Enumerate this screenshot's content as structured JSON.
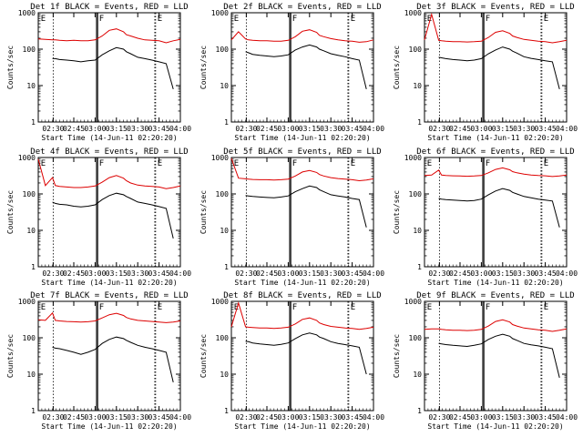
{
  "figure": {
    "colors": {
      "events": "#000000",
      "lld": "#dd0000",
      "axes": "#000000",
      "background": "#ffffff"
    }
  },
  "shared": {
    "ylabel": "Counts/sec",
    "xlabel": "Start Time (14-Jun-11 02:20:20)",
    "x_tick_labels": [
      "02:30",
      "02:45",
      "03:00",
      "03:15",
      "03:30",
      "03:45",
      "04:00"
    ],
    "y_tick_labels": [
      "1",
      "10",
      "100",
      "1000"
    ],
    "flag_F": "F",
    "flag_E": "E"
  },
  "chart_data": [
    {
      "type": "line",
      "title": "Det 1f BLACK = Events, RED = LLD",
      "xlabel": "Start Time (14-Jun-11 02:20:20)",
      "ylabel": "Counts/sec",
      "x_range_min": [
        0,
        100
      ],
      "y_range": [
        1,
        1000
      ],
      "y_scale": "log",
      "grid": false,
      "x_min": [
        0,
        5,
        10,
        12,
        15,
        20,
        25,
        30,
        35,
        40,
        45,
        50,
        55,
        60,
        62,
        65,
        70,
        75,
        80,
        85,
        90,
        95,
        100
      ],
      "series": [
        {
          "name": "LLD",
          "values": [
            190,
            185,
            180,
            180,
            175,
            170,
            175,
            170,
            170,
            180,
            230,
            330,
            360,
            300,
            250,
            230,
            200,
            180,
            175,
            170,
            150,
            170,
            185
          ]
        },
        {
          "name": "Events",
          "values": [
            null,
            null,
            55,
            55,
            52,
            50,
            48,
            45,
            48,
            50,
            70,
            90,
            110,
            100,
            85,
            75,
            60,
            55,
            50,
            45,
            40,
            8,
            null
          ]
        }
      ],
      "vertical_markers_min": [
        10.5,
        41,
        41.8,
        82,
        82.6
      ],
      "flags": [
        {
          "label": "E",
          "x_min": 0.5
        },
        {
          "label": "F",
          "x_min": 41.5
        },
        {
          "label": "E",
          "x_min": 82.5
        }
      ]
    },
    {
      "type": "line",
      "title": "Det 2f BLACK = Events, RED = LLD",
      "xlabel": "Start Time (14-Jun-11 02:20:20)",
      "ylabel": "Counts/sec",
      "x_range_min": [
        0,
        100
      ],
      "y_range": [
        1,
        1000
      ],
      "y_scale": "log",
      "grid": false,
      "x_min": [
        0,
        5,
        10,
        12,
        15,
        20,
        25,
        30,
        35,
        40,
        45,
        50,
        55,
        60,
        62,
        65,
        70,
        75,
        80,
        85,
        90,
        95,
        100
      ],
      "series": [
        {
          "name": "LLD",
          "values": [
            180,
            300,
            190,
            180,
            175,
            170,
            170,
            165,
            165,
            175,
            220,
            310,
            340,
            290,
            240,
            220,
            195,
            180,
            170,
            165,
            155,
            160,
            180
          ]
        },
        {
          "name": "Events",
          "values": [
            null,
            null,
            85,
            80,
            72,
            68,
            65,
            62,
            65,
            70,
            95,
            115,
            130,
            115,
            100,
            90,
            75,
            68,
            62,
            55,
            50,
            8,
            null
          ]
        }
      ],
      "vertical_markers_min": [
        10.5,
        41,
        41.8,
        82,
        82.6
      ],
      "flags": [
        {
          "label": "E",
          "x_min": 0.5
        },
        {
          "label": "F",
          "x_min": 41.5
        },
        {
          "label": "E",
          "x_min": 82.5
        }
      ]
    },
    {
      "type": "line",
      "title": "Det 3f BLACK = Events, RED = LLD",
      "xlabel": "Start Time (14-Jun-11 02:20:20)",
      "ylabel": "Counts/sec",
      "x_range_min": [
        0,
        100
      ],
      "y_range": [
        1,
        1000
      ],
      "y_scale": "log",
      "grid": false,
      "x_min": [
        0,
        5,
        10,
        12,
        15,
        20,
        25,
        30,
        35,
        40,
        45,
        50,
        55,
        60,
        62,
        65,
        70,
        75,
        80,
        85,
        90,
        95,
        100
      ],
      "series": [
        {
          "name": "LLD",
          "values": [
            180,
            900,
            175,
            170,
            165,
            160,
            160,
            158,
            160,
            165,
            210,
            290,
            320,
            270,
            230,
            210,
            185,
            175,
            165,
            160,
            150,
            160,
            175
          ]
        },
        {
          "name": "Events",
          "values": [
            null,
            null,
            60,
            58,
            55,
            52,
            50,
            48,
            50,
            55,
            75,
            95,
            115,
            100,
            88,
            78,
            62,
            56,
            52,
            48,
            45,
            8,
            null
          ]
        }
      ],
      "vertical_markers_min": [
        10.5,
        41,
        41.8,
        82,
        82.6
      ],
      "flags": [
        {
          "label": "E",
          "x_min": 0.5
        },
        {
          "label": "F",
          "x_min": 41.5
        },
        {
          "label": "E",
          "x_min": 82.5
        }
      ]
    },
    {
      "type": "line",
      "title": "Det 4f BLACK = Events, RED = LLD",
      "xlabel": "Start Time (14-Jun-11 02:20:20)",
      "ylabel": "Counts/sec",
      "x_range_min": [
        0,
        100
      ],
      "y_range": [
        1,
        1000
      ],
      "y_scale": "log",
      "grid": false,
      "x_min": [
        0,
        5,
        10,
        12,
        15,
        20,
        25,
        30,
        35,
        40,
        45,
        50,
        55,
        60,
        62,
        65,
        70,
        75,
        80,
        85,
        90,
        95,
        100
      ],
      "series": [
        {
          "name": "LLD",
          "values": [
            900,
            170,
            280,
            170,
            160,
            155,
            150,
            150,
            155,
            165,
            210,
            280,
            320,
            270,
            230,
            200,
            175,
            165,
            160,
            155,
            140,
            150,
            165
          ]
        },
        {
          "name": "Events",
          "values": [
            null,
            null,
            60,
            55,
            52,
            50,
            46,
            44,
            46,
            50,
            70,
            90,
            105,
            95,
            85,
            75,
            60,
            55,
            50,
            45,
            40,
            6,
            null
          ]
        }
      ],
      "vertical_markers_min": [
        10.5,
        41,
        41.8,
        82,
        82.6
      ],
      "flags": [
        {
          "label": "E",
          "x_min": 0.5
        },
        {
          "label": "F",
          "x_min": 41.5
        },
        {
          "label": "E",
          "x_min": 82.5
        }
      ]
    },
    {
      "type": "line",
      "title": "Det 5f BLACK = Events, RED = LLD",
      "xlabel": "Start Time (14-Jun-11 02:20:20)",
      "ylabel": "Counts/sec",
      "x_range_min": [
        0,
        100
      ],
      "y_range": [
        1,
        1000
      ],
      "y_scale": "log",
      "grid": false,
      "x_min": [
        0,
        5,
        10,
        12,
        15,
        20,
        25,
        30,
        35,
        40,
        45,
        50,
        55,
        60,
        62,
        65,
        70,
        75,
        80,
        85,
        90,
        95,
        100
      ],
      "series": [
        {
          "name": "LLD",
          "values": [
            950,
            270,
            260,
            255,
            250,
            245,
            245,
            240,
            245,
            255,
            310,
            400,
            440,
            390,
            340,
            310,
            280,
            265,
            255,
            245,
            230,
            240,
            260
          ]
        },
        {
          "name": "Events",
          "values": [
            null,
            null,
            90,
            88,
            85,
            82,
            80,
            78,
            82,
            88,
            115,
            140,
            165,
            150,
            130,
            115,
            95,
            88,
            82,
            75,
            70,
            12,
            null
          ]
        }
      ],
      "vertical_markers_min": [
        10.5,
        41,
        41.8,
        82,
        82.6
      ],
      "flags": [
        {
          "label": "E",
          "x_min": 0.5
        },
        {
          "label": "F",
          "x_min": 41.5
        },
        {
          "label": "E",
          "x_min": 82.5
        }
      ]
    },
    {
      "type": "line",
      "title": "Det 6f BLACK = Events, RED = LLD",
      "xlabel": "Start Time (14-Jun-11 02:20:20)",
      "ylabel": "Counts/sec",
      "x_range_min": [
        0,
        100
      ],
      "y_range": [
        1,
        1000
      ],
      "y_scale": "log",
      "grid": false,
      "x_min": [
        0,
        5,
        10,
        12,
        15,
        20,
        25,
        30,
        35,
        40,
        45,
        50,
        55,
        60,
        62,
        65,
        70,
        75,
        80,
        85,
        90,
        95,
        100
      ],
      "series": [
        {
          "name": "LLD",
          "values": [
            320,
            330,
            450,
            330,
            320,
            315,
            310,
            305,
            310,
            320,
            380,
            470,
            520,
            460,
            410,
            380,
            350,
            330,
            320,
            315,
            300,
            310,
            330
          ]
        },
        {
          "name": "Events",
          "values": [
            null,
            null,
            75,
            72,
            70,
            68,
            66,
            64,
            66,
            72,
            95,
            120,
            140,
            125,
            110,
            100,
            85,
            78,
            72,
            68,
            64,
            12,
            null
          ]
        }
      ],
      "vertical_markers_min": [
        10.5,
        41,
        41.8,
        82,
        82.6
      ],
      "flags": [
        {
          "label": "E",
          "x_min": 0.5
        },
        {
          "label": "F",
          "x_min": 41.5
        },
        {
          "label": "E",
          "x_min": 82.5
        }
      ]
    },
    {
      "type": "line",
      "title": "Det 7f BLACK = Events, RED = LLD",
      "xlabel": "Start Time (14-Jun-11 02:20:20)",
      "ylabel": "Counts/sec",
      "x_range_min": [
        0,
        100
      ],
      "y_range": [
        1,
        1000
      ],
      "y_scale": "log",
      "grid": false,
      "x_min": [
        0,
        5,
        10,
        12,
        15,
        20,
        25,
        30,
        35,
        40,
        45,
        50,
        55,
        60,
        62,
        65,
        70,
        75,
        80,
        85,
        90,
        95,
        100
      ],
      "series": [
        {
          "name": "LLD",
          "values": [
            310,
            300,
            480,
            300,
            290,
            280,
            275,
            270,
            275,
            290,
            350,
            430,
            470,
            410,
            360,
            330,
            300,
            290,
            280,
            270,
            260,
            270,
            290
          ]
        },
        {
          "name": "Events",
          "values": [
            null,
            null,
            55,
            52,
            50,
            45,
            40,
            35,
            40,
            48,
            70,
            90,
            105,
            95,
            85,
            75,
            62,
            55,
            50,
            45,
            40,
            6,
            null
          ]
        }
      ],
      "vertical_markers_min": [
        10.5,
        41,
        41.8,
        82,
        82.6
      ],
      "flags": [
        {
          "label": "E",
          "x_min": 0.5
        },
        {
          "label": "F",
          "x_min": 41.5
        },
        {
          "label": "E",
          "x_min": 82.5
        }
      ]
    },
    {
      "type": "line",
      "title": "Det 8f BLACK = Events, RED = LLD",
      "xlabel": "Start Time (14-Jun-11 02:20:20)",
      "ylabel": "Counts/sec",
      "x_range_min": [
        0,
        100
      ],
      "y_range": [
        1,
        1000
      ],
      "y_scale": "log",
      "grid": false,
      "x_min": [
        0,
        5,
        10,
        12,
        15,
        20,
        25,
        30,
        35,
        40,
        45,
        50,
        55,
        60,
        62,
        65,
        70,
        75,
        80,
        85,
        90,
        95,
        100
      ],
      "series": [
        {
          "name": "LLD",
          "values": [
            200,
            900,
            200,
            195,
            190,
            185,
            185,
            180,
            185,
            195,
            240,
            320,
            350,
            300,
            255,
            230,
            205,
            195,
            185,
            180,
            170,
            180,
            195
          ]
        },
        {
          "name": "Events",
          "values": [
            null,
            null,
            80,
            78,
            72,
            68,
            65,
            62,
            66,
            72,
            95,
            120,
            135,
            120,
            105,
            95,
            78,
            70,
            65,
            60,
            55,
            10,
            null
          ]
        }
      ],
      "vertical_markers_min": [
        10.5,
        41,
        41.8,
        82,
        82.6
      ],
      "flags": [
        {
          "label": "E",
          "x_min": 0.5
        },
        {
          "label": "F",
          "x_min": 41.5
        },
        {
          "label": "E",
          "x_min": 82.5
        }
      ]
    },
    {
      "type": "line",
      "title": "Det 9f BLACK = Events, RED = LLD",
      "xlabel": "Start Time (14-Jun-11 02:20:20)",
      "ylabel": "Counts/sec",
      "x_range_min": [
        0,
        100
      ],
      "y_range": [
        1,
        1000
      ],
      "y_scale": "log",
      "grid": false,
      "x_min": [
        0,
        5,
        10,
        12,
        15,
        20,
        25,
        30,
        35,
        40,
        45,
        50,
        55,
        60,
        62,
        65,
        70,
        75,
        80,
        85,
        90,
        95,
        100
      ],
      "series": [
        {
          "name": "LLD",
          "values": [
            170,
            175,
            175,
            170,
            165,
            160,
            160,
            158,
            160,
            170,
            210,
            280,
            310,
            270,
            230,
            210,
            185,
            175,
            165,
            160,
            150,
            160,
            175
          ]
        },
        {
          "name": "Events",
          "values": [
            null,
            null,
            70,
            68,
            65,
            62,
            60,
            58,
            62,
            68,
            90,
            110,
            125,
            110,
            95,
            85,
            70,
            64,
            60,
            55,
            50,
            8,
            null
          ]
        }
      ],
      "vertical_markers_min": [
        10.5,
        41,
        41.8,
        82,
        82.6
      ],
      "flags": [
        {
          "label": "E",
          "x_min": 0.5
        },
        {
          "label": "F",
          "x_min": 41.5
        },
        {
          "label": "E",
          "x_min": 82.5
        }
      ]
    }
  ]
}
